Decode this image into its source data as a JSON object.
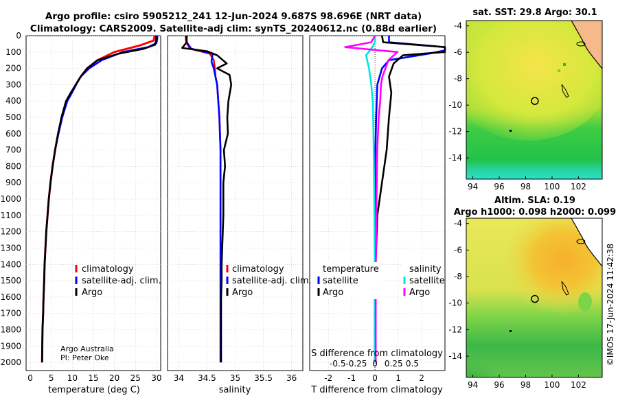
{
  "header": {
    "title_line1": "Argo profile: csiro 5905212_241 12-Jun-2024 9.687S 98.696E (NRT data)",
    "title_line2": "Climatology: CARS2009. Satellite-adj clim: synTS_20240612.nc (0.88d earlier)"
  },
  "credit": {
    "line1": "Argo Australia",
    "line2": "PI: Peter Oke"
  },
  "watermark": "©IMOS 17-Jun-2024 11:42:38",
  "colors": {
    "climatology": "#ff0000",
    "satellite": "#0000ff",
    "argo": "#000000",
    "s_satellite": "#00e5e5",
    "s_argo": "#ff00ff"
  },
  "chart_data": [
    {
      "type": "line",
      "panel": "temperature",
      "xlabel": "temperature (deg C)",
      "ylabel": "",
      "xlim": [
        -1,
        31
      ],
      "ylim": [
        2050,
        0
      ],
      "xticks": [
        "0",
        "5",
        "10",
        "15",
        "20",
        "25",
        "30"
      ],
      "yticks": [
        "0",
        "100",
        "200",
        "300",
        "400",
        "500",
        "600",
        "700",
        "800",
        "900",
        "1000",
        "1100",
        "1200",
        "1300",
        "1400",
        "1500",
        "1600",
        "1700",
        "1800",
        "1900",
        "2000"
      ],
      "legend": [
        "climatology",
        "satellite-adj. clim.",
        "Argo"
      ],
      "series": [
        {
          "name": "climatology",
          "x": [
            29.6,
            29.3,
            26,
            20,
            16,
            13.5,
            12,
            10.8,
            9.8,
            8.6,
            7.5,
            6.6,
            5.9,
            5.3,
            4.8,
            4.4,
            4.1,
            3.8,
            3.6,
            3.4,
            3.3,
            3.15,
            3.05,
            2.9,
            2.85,
            2.8
          ],
          "y": [
            0,
            30,
            60,
            100,
            150,
            200,
            250,
            300,
            350,
            400,
            500,
            600,
            700,
            800,
            900,
            1000,
            1100,
            1200,
            1300,
            1400,
            1500,
            1600,
            1700,
            1800,
            1900,
            2000
          ]
        },
        {
          "name": "satellite-adj. clim.",
          "x": [
            30.2,
            30.2,
            30,
            28,
            22,
            17,
            14,
            12,
            10.9,
            9.9,
            8.8,
            7.6,
            6.7,
            5.9,
            5.3,
            4.8,
            4.4,
            4.1,
            3.8,
            3.6,
            3.4,
            3.3,
            3.15,
            3.05,
            2.9,
            2.85,
            2.8
          ],
          "y": [
            0,
            20,
            45,
            70,
            100,
            150,
            200,
            250,
            300,
            350,
            400,
            500,
            600,
            700,
            800,
            900,
            1000,
            1100,
            1200,
            1300,
            1400,
            1500,
            1600,
            1700,
            1800,
            1900,
            2000
          ]
        },
        {
          "name": "Argo",
          "x": [
            29.9,
            29.9,
            29.7,
            27,
            21,
            16,
            13.5,
            12,
            10.8,
            9.6,
            8.5,
            7.4,
            6.6,
            5.9,
            5.3,
            4.8,
            4.4,
            4.1,
            3.8,
            3.6,
            3.4,
            3.3,
            3.15,
            3.05,
            2.9,
            2.85,
            2.8
          ],
          "y": [
            0,
            25,
            55,
            80,
            110,
            150,
            200,
            250,
            300,
            350,
            400,
            500,
            600,
            700,
            800,
            900,
            1000,
            1100,
            1200,
            1300,
            1400,
            1500,
            1600,
            1700,
            1800,
            1900,
            2000
          ]
        }
      ]
    },
    {
      "type": "line",
      "panel": "salinity",
      "xlabel": "salinity",
      "xlim": [
        33.8,
        36.2
      ],
      "ylim": [
        2050,
        0
      ],
      "xticks": [
        "34",
        "34.5",
        "35",
        "35.5",
        "36"
      ],
      "legend": [
        "climatology",
        "satellite-adj. clim.",
        "Argo"
      ],
      "series": [
        {
          "name": "climatology",
          "x": [
            34.12,
            34.13,
            34.2,
            34.55,
            34.62,
            34.64,
            34.65,
            34.68,
            34.7,
            34.72,
            34.73,
            34.74,
            34.74,
            34.74,
            34.74,
            34.74,
            34.74,
            34.74,
            34.74,
            34.74,
            34.74,
            34.74
          ],
          "y": [
            0,
            40,
            80,
            110,
            150,
            200,
            250,
            300,
            400,
            500,
            600,
            700,
            800,
            900,
            1000,
            1200,
            1400,
            1600,
            1700,
            1800,
            1900,
            2000
          ]
        },
        {
          "name": "satellite-adj. clim.",
          "x": [
            34.13,
            34.14,
            34.22,
            34.6,
            34.58,
            34.62,
            34.65,
            34.68,
            34.7,
            34.72,
            34.73,
            34.74,
            34.74,
            34.74,
            34.74,
            34.74,
            34.74,
            34.74,
            34.74,
            34.74
          ],
          "y": [
            0,
            40,
            80,
            110,
            160,
            200,
            250,
            300,
            400,
            500,
            600,
            700,
            800,
            900,
            1000,
            1200,
            1400,
            1600,
            1800,
            2000
          ]
        },
        {
          "name": "Argo",
          "x": [
            34.14,
            34.14,
            34.06,
            34.5,
            34.68,
            34.85,
            34.68,
            34.9,
            34.93,
            34.88,
            34.86,
            34.87,
            34.8,
            34.82,
            34.79,
            34.79,
            34.79,
            34.78,
            34.77,
            34.76,
            34.76,
            34.75,
            34.75,
            34.75
          ],
          "y": [
            0,
            40,
            75,
            95,
            120,
            170,
            200,
            240,
            300,
            400,
            500,
            600,
            700,
            800,
            900,
            1000,
            1100,
            1200,
            1300,
            1400,
            1500,
            1600,
            1800,
            2000
          ]
        }
      ]
    },
    {
      "type": "line",
      "panel": "differences",
      "xlabel": "T difference from climatology",
      "xlabel_top": "S difference from climatology",
      "xlim": [
        -2.8,
        3
      ],
      "ylim": [
        2050,
        0
      ],
      "xticks": [
        "-2",
        "-1",
        "0",
        "1",
        "2"
      ],
      "xticks_salinity": [
        "-0.5",
        "-0.25",
        "0",
        "0.25",
        "0.5"
      ],
      "legend_temperature_title": "temperature",
      "legend_salinity_title": "salinity",
      "legend_temperature": [
        "satellite",
        "Argo"
      ],
      "legend_salinity": [
        "satellite",
        "Argo"
      ],
      "series": [
        {
          "name": "T satellite",
          "x": [
            0.6,
            0.6,
            3,
            3,
            2.3,
            0.6,
            0.3,
            0.1,
            0.05,
            0,
            0,
            0,
            0,
            0
          ],
          "y": [
            0,
            40,
            70,
            90,
            110,
            150,
            200,
            300,
            500,
            800,
            1200,
            1500,
            1800,
            2000
          ]
        },
        {
          "name": "T Argo",
          "x": [
            0.3,
            0.35,
            3,
            3,
            1.2,
            0.8,
            0.6,
            0.7,
            0.6,
            0.5,
            0.3,
            0.1,
            0,
            0
          ],
          "y": [
            0,
            40,
            70,
            100,
            120,
            170,
            250,
            350,
            500,
            700,
            900,
            1100,
            1500,
            2000
          ]
        },
        {
          "name": "S satellite",
          "x": [
            0,
            0,
            -0.05,
            -0.12,
            -0.08,
            -0.05,
            -0.03,
            -0.02,
            -0.01,
            0,
            0
          ],
          "y": [
            0,
            40,
            80,
            120,
            200,
            300,
            400,
            600,
            1000,
            1500,
            2000
          ]
        },
        {
          "name": "S Argo",
          "x": [
            0,
            -0.05,
            -0.4,
            0.3,
            0.18,
            0.1,
            0.08,
            0.07,
            0.05,
            0.03,
            0.02,
            0.01,
            0.01
          ],
          "y": [
            0,
            40,
            70,
            100,
            150,
            250,
            300,
            400,
            500,
            700,
            1000,
            1500,
            2000
          ]
        }
      ]
    },
    {
      "type": "heatmap",
      "panel": "sst-map",
      "title": "sat. SST: 29.8 Argo: 30.1",
      "xlim": [
        93.5,
        103.8
      ],
      "ylim": [
        -15.6,
        -3.6
      ],
      "xticks": [
        "94",
        "96",
        "98",
        "100",
        "102"
      ],
      "yticks": [
        "-4",
        "-6",
        "-8",
        "-10",
        "-12",
        "-14"
      ],
      "argo_position": {
        "lon": 98.696,
        "lat": -9.687
      }
    },
    {
      "type": "heatmap",
      "panel": "sla-map",
      "title_line1": "Altim. SLA: 0.19",
      "title_line2": "Argo h1000: 0.098 h2000: 0.099",
      "xlim": [
        93.5,
        103.8
      ],
      "ylim": [
        -15.6,
        -3.6
      ],
      "xticks": [
        "94",
        "96",
        "98",
        "100",
        "102"
      ],
      "yticks": [
        "-4",
        "-6",
        "-8",
        "-10",
        "-12",
        "-14"
      ],
      "argo_position": {
        "lon": 98.696,
        "lat": -9.687
      }
    }
  ]
}
